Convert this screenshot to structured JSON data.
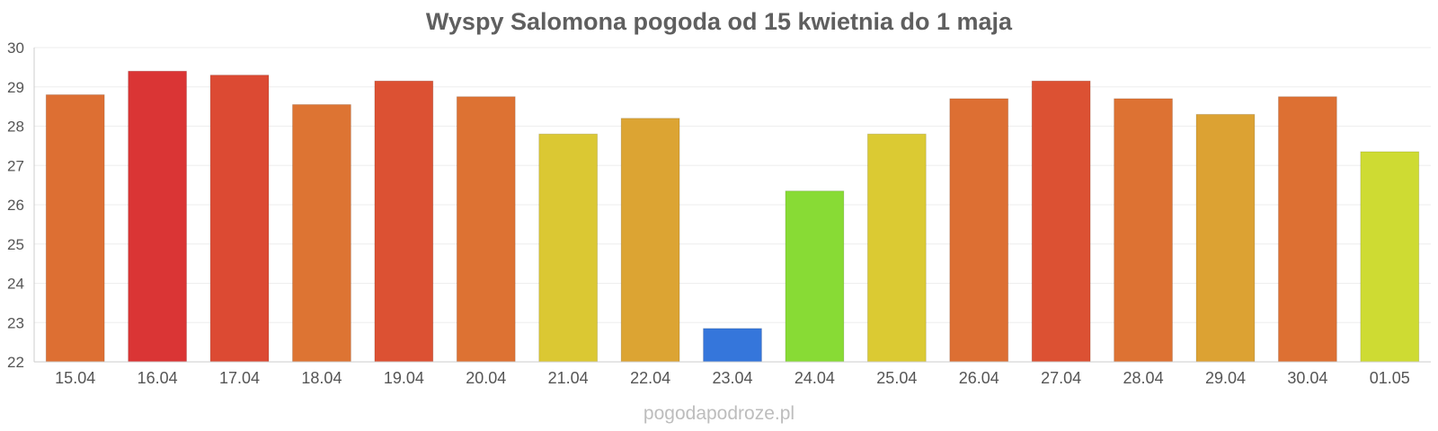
{
  "chart_data": {
    "type": "bar",
    "title": "Wyspy Salomona pogoda od 15 kwietnia do 1 maja",
    "xlabel": "",
    "ylabel": "",
    "ylim": [
      22,
      30
    ],
    "yticks": [
      "22",
      "23",
      "24",
      "25",
      "26",
      "27",
      "28",
      "29",
      "30"
    ],
    "grid": true,
    "legend": "none",
    "categories": [
      "15.04",
      "16.04",
      "17.04",
      "18.04",
      "19.04",
      "20.04",
      "21.04",
      "22.04",
      "23.04",
      "24.04",
      "25.04",
      "26.04",
      "27.04",
      "28.04",
      "29.04",
      "30.04",
      "01.05"
    ],
    "values": [
      28.8,
      29.4,
      29.3,
      28.55,
      29.15,
      28.75,
      27.8,
      28.2,
      22.85,
      26.35,
      27.8,
      28.7,
      29.15,
      28.7,
      28.3,
      28.75,
      27.35
    ],
    "colors": [
      "#dd6f33",
      "#da3535",
      "#dc4a33",
      "#dd7433",
      "#dc5133",
      "#dd7233",
      "#dbc833",
      "#dca433",
      "#3576db",
      "#88db35",
      "#dbca33",
      "#dd6f33",
      "#dc5133",
      "#dd7233",
      "#dca233",
      "#dd7033",
      "#cedb33"
    ]
  },
  "footer": {
    "credit": "pogodapodroze.pl"
  }
}
